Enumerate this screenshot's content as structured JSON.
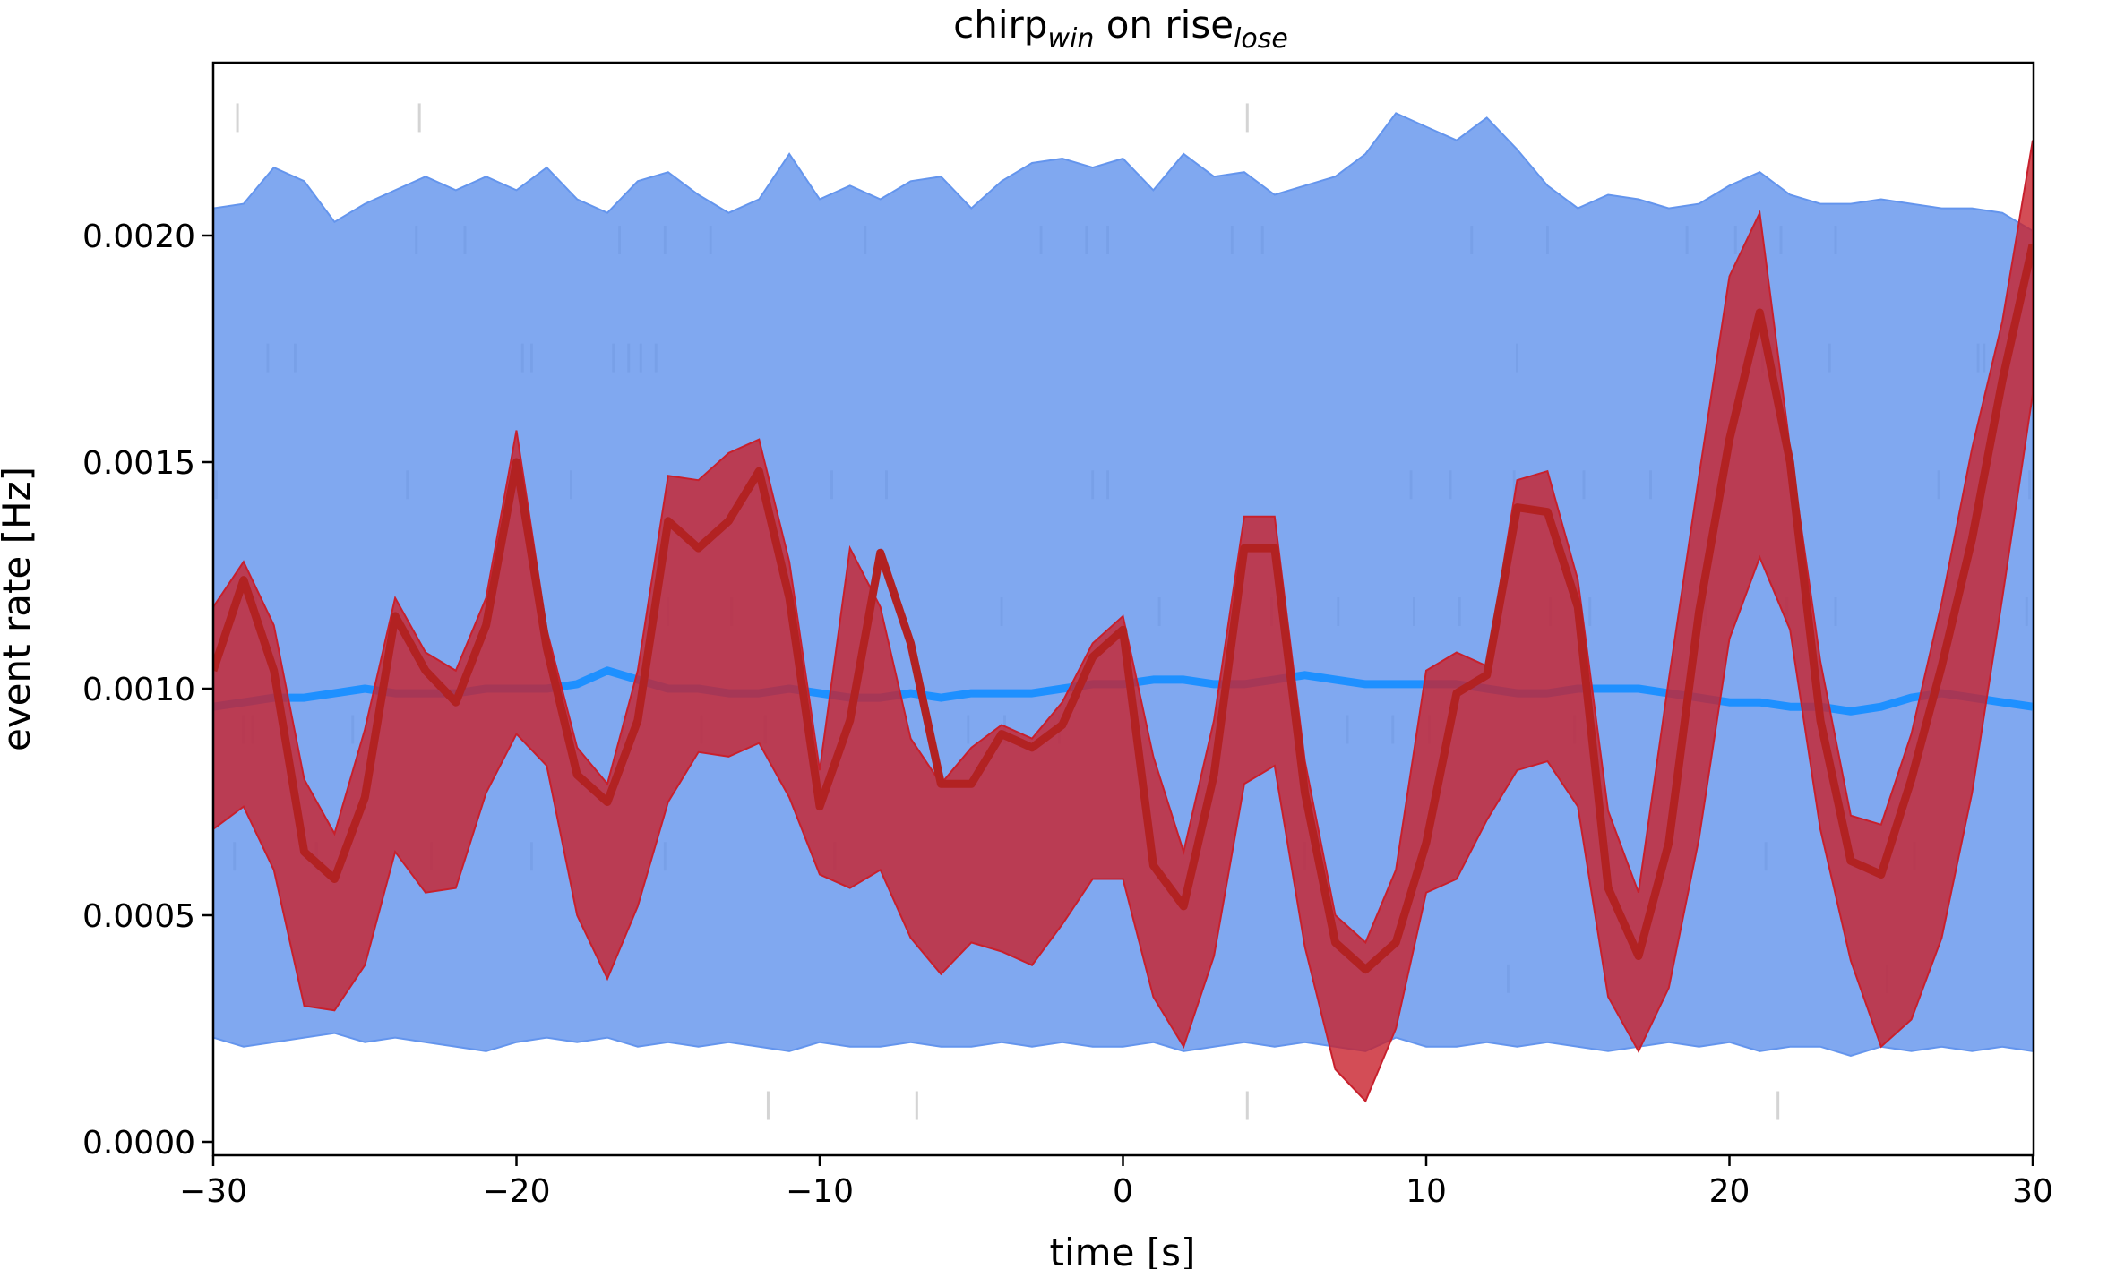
{
  "chart_data": {
    "type": "area",
    "title": {
      "main": "chirp",
      "sub": "win",
      "middle": " on rise",
      "sub2": "lose"
    },
    "xlabel": "time [s]",
    "ylabel": "event rate [Hz]",
    "xlim": [
      -30,
      30
    ],
    "ylim": [
      -3e-05,
      0.00237
    ],
    "xticks": [
      -30,
      -20,
      -10,
      0,
      10,
      20,
      30
    ],
    "xtick_labels": [
      "−30",
      "−20",
      "−10",
      "0",
      "10",
      "20",
      "30"
    ],
    "yticks": [
      0,
      0.0005,
      0.001,
      0.0015,
      0.002
    ],
    "ytick_labels": [
      "0.0000",
      "0.0005",
      "0.0010",
      "0.0015",
      "0.0020"
    ],
    "grid": false,
    "colors": {
      "shuffled_band": "#6495ED",
      "shuffled_median": "#1E90FF",
      "observed_band": "#C8202C",
      "observed_line": "#B22222",
      "raster": "#555555"
    },
    "x": [
      -30,
      -29,
      -28,
      -27,
      -26,
      -25,
      -24,
      -23,
      -22,
      -21,
      -20,
      -19,
      -18,
      -17,
      -16,
      -15,
      -14,
      -13,
      -12,
      -11,
      -10,
      -9,
      -8,
      -7,
      -6,
      -5,
      -4,
      -3,
      -2,
      -1,
      0,
      1,
      2,
      3,
      4,
      5,
      6,
      7,
      8,
      9,
      10,
      11,
      12,
      13,
      14,
      15,
      16,
      17,
      18,
      19,
      20,
      21,
      22,
      23,
      24,
      25,
      26,
      27,
      28,
      29,
      30
    ],
    "series": [
      {
        "kind": "band",
        "upper": [
          0.00206,
          0.00207,
          0.00215,
          0.00212,
          0.00203,
          0.00207,
          0.0021,
          0.00213,
          0.0021,
          0.00213,
          0.0021,
          0.00215,
          0.00208,
          0.00205,
          0.00212,
          0.00214,
          0.00209,
          0.00205,
          0.00208,
          0.00218,
          0.00208,
          0.00211,
          0.00208,
          0.00212,
          0.00213,
          0.00206,
          0.00212,
          0.00216,
          0.00217,
          0.00215,
          0.00217,
          0.0021,
          0.00218,
          0.00213,
          0.00214,
          0.00209,
          0.00211,
          0.00213,
          0.00218,
          0.00227,
          0.00224,
          0.00221,
          0.00226,
          0.00219,
          0.00211,
          0.00206,
          0.00209,
          0.00208,
          0.00206,
          0.00207,
          0.00211,
          0.00214,
          0.00209,
          0.00207,
          0.00207,
          0.00208,
          0.00207,
          0.00206,
          0.00206,
          0.00205,
          0.00201
        ],
        "lower": [
          0.00023,
          0.00021,
          0.00022,
          0.00023,
          0.00024,
          0.00022,
          0.00023,
          0.00022,
          0.00021,
          0.0002,
          0.00022,
          0.00023,
          0.00022,
          0.00023,
          0.00021,
          0.00022,
          0.00021,
          0.00022,
          0.00021,
          0.0002,
          0.00022,
          0.00021,
          0.00021,
          0.00022,
          0.00021,
          0.00021,
          0.00022,
          0.00021,
          0.00022,
          0.00021,
          0.00021,
          0.00022,
          0.0002,
          0.00021,
          0.00022,
          0.00021,
          0.00022,
          0.00021,
          0.0002,
          0.00023,
          0.00021,
          0.00021,
          0.00022,
          0.00021,
          0.00022,
          0.00021,
          0.0002,
          0.00021,
          0.00022,
          0.00021,
          0.00022,
          0.0002,
          0.00021,
          0.00021,
          0.00019,
          0.00021,
          0.0002,
          0.00021,
          0.0002,
          0.00021,
          0.0002
        ]
      },
      {
        "kind": "line",
        "values": [
          0.00096,
          0.00097,
          0.00098,
          0.00098,
          0.00099,
          0.001,
          0.00099,
          0.00099,
          0.00099,
          0.001,
          0.001,
          0.001,
          0.00101,
          0.00104,
          0.00102,
          0.001,
          0.001,
          0.00099,
          0.00099,
          0.001,
          0.00099,
          0.00098,
          0.00098,
          0.00099,
          0.00098,
          0.00099,
          0.00099,
          0.00099,
          0.001,
          0.00101,
          0.00101,
          0.00102,
          0.00102,
          0.00101,
          0.00101,
          0.00102,
          0.00103,
          0.00102,
          0.00101,
          0.00101,
          0.00101,
          0.00101,
          0.001,
          0.00099,
          0.00099,
          0.001,
          0.001,
          0.001,
          0.00099,
          0.00098,
          0.00097,
          0.00097,
          0.00096,
          0.00096,
          0.00095,
          0.00096,
          0.00098,
          0.00099,
          0.00098,
          0.00097,
          0.00096
        ]
      },
      {
        "kind": "band",
        "upper": [
          0.00118,
          0.00128,
          0.00114,
          0.0008,
          0.00068,
          0.00091,
          0.0012,
          0.00108,
          0.00104,
          0.0012,
          0.00157,
          0.00113,
          0.00087,
          0.00079,
          0.00104,
          0.00147,
          0.00146,
          0.00152,
          0.00155,
          0.00128,
          0.00082,
          0.00131,
          0.00118,
          0.00089,
          0.00079,
          0.00087,
          0.00092,
          0.00089,
          0.00097,
          0.0011,
          0.00116,
          0.00085,
          0.00064,
          0.00093,
          0.00138,
          0.00138,
          0.00084,
          0.0005,
          0.00044,
          0.0006,
          0.00104,
          0.00108,
          0.00105,
          0.00146,
          0.00148,
          0.00124,
          0.00073,
          0.00055,
          0.00102,
          0.00147,
          0.00191,
          0.00205,
          0.00153,
          0.00106,
          0.00072,
          0.0007,
          0.0009,
          0.00119,
          0.00153,
          0.00181,
          0.00221
        ],
        "lower": [
          0.00069,
          0.00074,
          0.0006,
          0.0003,
          0.00029,
          0.00039,
          0.00064,
          0.00055,
          0.00056,
          0.00077,
          0.0009,
          0.00083,
          0.0005,
          0.00036,
          0.00052,
          0.00075,
          0.00086,
          0.00085,
          0.00088,
          0.00076,
          0.00059,
          0.00056,
          0.0006,
          0.00045,
          0.00037,
          0.00044,
          0.00042,
          0.00039,
          0.00048,
          0.00058,
          0.00058,
          0.00032,
          0.00021,
          0.00041,
          0.00079,
          0.00083,
          0.00043,
          0.00016,
          9e-05,
          0.00025,
          0.00055,
          0.00058,
          0.00071,
          0.00082,
          0.00084,
          0.00074,
          0.00032,
          0.0002,
          0.00034,
          0.00067,
          0.00111,
          0.00129,
          0.00113,
          0.00069,
          0.0004,
          0.00021,
          0.00027,
          0.00045,
          0.00077,
          0.0012,
          0.00165
        ]
      },
      {
        "kind": "line",
        "values": [
          0.00104,
          0.00124,
          0.00104,
          0.00064,
          0.00058,
          0.00076,
          0.00116,
          0.00104,
          0.00097,
          0.00114,
          0.0015,
          0.00109,
          0.00081,
          0.00075,
          0.00093,
          0.00137,
          0.00131,
          0.00137,
          0.00148,
          0.0012,
          0.00074,
          0.00093,
          0.0013,
          0.0011,
          0.00079,
          0.00079,
          0.0009,
          0.00087,
          0.00092,
          0.00107,
          0.00113,
          0.00061,
          0.00052,
          0.00081,
          0.00131,
          0.00131,
          0.00077,
          0.00044,
          0.00038,
          0.00044,
          0.00066,
          0.00099,
          0.00103,
          0.0014,
          0.00139,
          0.00118,
          0.00056,
          0.00041,
          0.00066,
          0.00117,
          0.00155,
          0.00183,
          0.0015,
          0.00093,
          0.00062,
          0.00059,
          0.0008,
          0.00105,
          0.00133,
          0.00168,
          0.00198
        ]
      }
    ],
    "raster_rows": [
      {
        "y": 0.00226,
        "times": [
          -29.2,
          -23.2,
          4.1
        ]
      },
      {
        "y": 0.00199,
        "times": [
          -23.3,
          -21.7,
          -16.6,
          -15.1,
          -13.6,
          -8.5,
          -2.7,
          -1.2,
          -0.5,
          3.6,
          4.6,
          11.5,
          14.0,
          18.6,
          20.2,
          21.7,
          23.5
        ]
      },
      {
        "y": 0.00173,
        "times": [
          -28.2,
          -27.3,
          -19.8,
          -19.5,
          -16.8,
          -16.3,
          -15.9,
          -15.4,
          13.0,
          21.1,
          21.4,
          23.3,
          28.2,
          28.4
        ]
      },
      {
        "y": 0.00145,
        "times": [
          -29.9,
          -23.6,
          -20.0,
          -18.2,
          -9.6,
          -7.8,
          -1.0,
          -0.5,
          9.5,
          10.8,
          12.9,
          15.2,
          17.4,
          26.9,
          29.9
        ]
      },
      {
        "y": 0.00117,
        "times": [
          -28.6,
          -15.0,
          -12.9,
          -4.0,
          1.2,
          4.9,
          7.1,
          9.6,
          11.1,
          14.1,
          15.4,
          19.2,
          21.9,
          23.5,
          29.8
        ]
      },
      {
        "y": 0.00091,
        "times": [
          -29.0,
          -28.7,
          -25.4,
          -16.5,
          -13.9,
          -11.8,
          -5.1,
          -3.9,
          -2.1,
          7.4,
          8.9,
          10.1,
          14.9,
          15.4
        ]
      },
      {
        "y": 0.00063,
        "times": [
          -29.3,
          -26.6,
          -22.8,
          -19.5,
          -15.1,
          -9.5,
          6.0,
          16.0,
          21.2,
          26.1
        ]
      },
      {
        "y": 0.00036,
        "times": [
          12.7,
          25.2
        ]
      },
      {
        "y": 8e-05,
        "times": [
          -11.7,
          -6.8,
          4.1,
          21.6
        ]
      }
    ]
  }
}
